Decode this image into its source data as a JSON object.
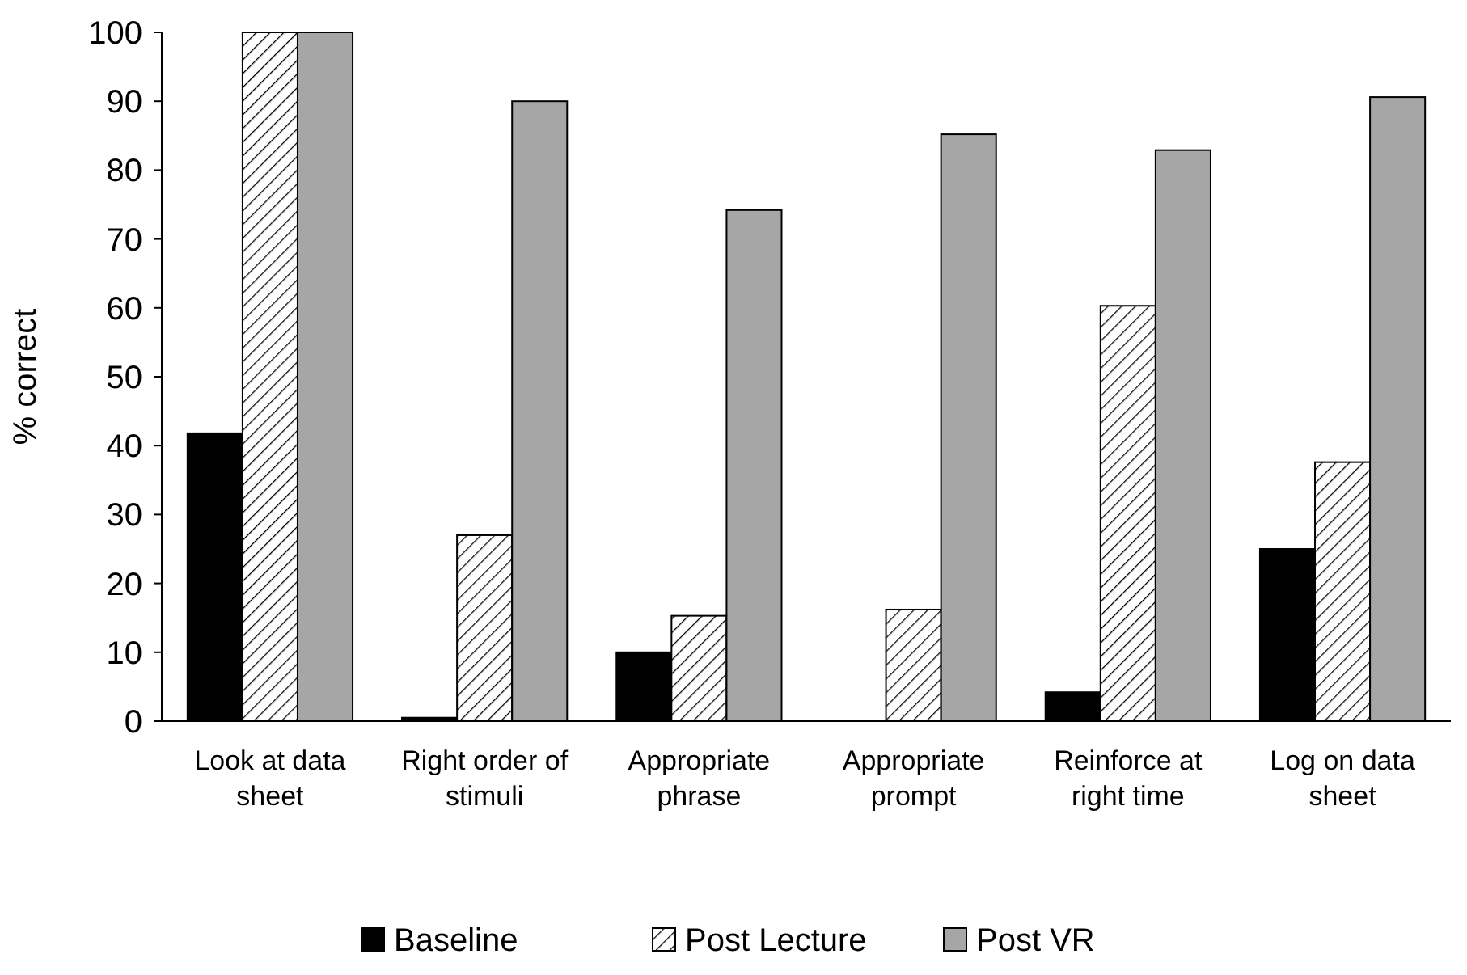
{
  "chart_data": {
    "type": "bar",
    "ylabel": "% correct",
    "categories": [
      "Look at data sheet",
      "Right order of stimuli",
      "Appropriate phrase",
      "Appropriate prompt",
      "Reinforce at right time",
      "Log on data sheet"
    ],
    "series": [
      {
        "name": "Baseline",
        "color": "#000000",
        "values": [
          41.8,
          0.5,
          10,
          0,
          4.2,
          25
        ]
      },
      {
        "name": "Post Lecture",
        "color": "#000000",
        "values": [
          100,
          27,
          15.3,
          16.2,
          60.3,
          37.6
        ]
      },
      {
        "name": "Post VR",
        "color": "#a6a6a6",
        "values": [
          100,
          90,
          74.2,
          85.2,
          82.9,
          90.6
        ]
      }
    ],
    "ylim": [
      0,
      100
    ],
    "yticks": [
      0,
      10,
      20,
      30,
      40,
      50,
      60,
      70,
      80,
      90,
      100
    ],
    "grid": false,
    "legend": "bottom"
  }
}
